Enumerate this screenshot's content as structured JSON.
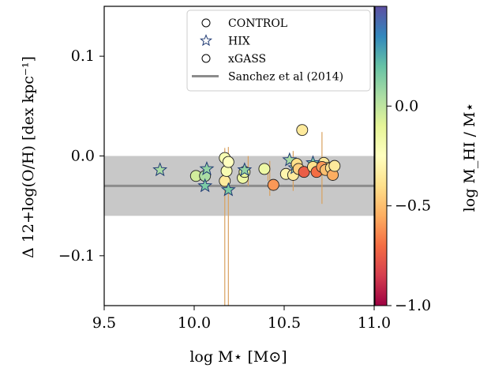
{
  "chart_data": {
    "type": "scatter",
    "xlabel": "log M⋆ [M⊙]",
    "ylabel": "Δ 12+log(O/H) [dex kpc⁻¹]",
    "xlim": [
      9.5,
      11.0
    ],
    "ylim": [
      -0.15,
      0.15
    ],
    "xticks": [
      9.5,
      10.0,
      10.5,
      11.0
    ],
    "xtick_labels": [
      "9.5",
      "10.0",
      "10.5",
      "11.0"
    ],
    "yticks": [
      -0.1,
      0.0,
      0.1
    ],
    "ytick_labels": [
      "−0.1",
      "0.0",
      "0.1"
    ],
    "colorbar": {
      "label": "log M_HI / M⋆",
      "range": [
        -1.0,
        0.5
      ],
      "ticks": [
        -1.0,
        -0.5,
        0.0
      ],
      "tick_labels": [
        "−1.0",
        "−0.5",
        "0.0"
      ]
    },
    "legend": {
      "placement": "top-right",
      "entries": [
        {
          "label": "CONTROL",
          "marker": "circle"
        },
        {
          "label": "HIX",
          "marker": "star"
        },
        {
          "label": "xGASS",
          "marker": "circle"
        },
        {
          "label": "Sanchez et al (2014)",
          "marker": "line"
        }
      ]
    },
    "reference": {
      "y": -0.03,
      "band": [
        -0.06,
        0.0
      ],
      "line_color": "#8c8c8c",
      "band_color": "#c8c8c8"
    },
    "series": [
      {
        "name": "CONTROL",
        "marker": "circle",
        "points": [
          {
            "x": 10.01,
            "y": -0.02,
            "c": -0.05
          },
          {
            "x": 10.06,
            "y": -0.02,
            "c": 0.05
          },
          {
            "x": 10.17,
            "y": -0.025,
            "c": -0.35
          },
          {
            "x": 10.18,
            "y": -0.015,
            "c": -0.2
          },
          {
            "x": 10.27,
            "y": -0.022,
            "c": -0.15
          },
          {
            "x": 10.28,
            "y": -0.016,
            "c": -0.1
          },
          {
            "x": 10.39,
            "y": -0.013,
            "c": -0.15
          },
          {
            "x": 10.51,
            "y": -0.018,
            "c": -0.3
          },
          {
            "x": 10.55,
            "y": -0.019,
            "c": -0.35
          },
          {
            "x": 10.72,
            "y": -0.007,
            "c": -0.35
          },
          {
            "x": 10.74,
            "y": -0.012,
            "c": -0.3
          }
        ]
      },
      {
        "name": "HIX",
        "marker": "star",
        "points": [
          {
            "x": 9.81,
            "y": -0.014,
            "c": 0.05
          },
          {
            "x": 10.06,
            "y": -0.03,
            "c": 0.15
          },
          {
            "x": 10.07,
            "y": -0.013,
            "c": 0.1
          },
          {
            "x": 10.19,
            "y": -0.034,
            "c": 0.15
          },
          {
            "x": 10.28,
            "y": -0.014,
            "c": 0.1
          },
          {
            "x": 10.53,
            "y": -0.004,
            "c": 0.05
          },
          {
            "x": 10.56,
            "y": -0.012,
            "c": 0.05
          },
          {
            "x": 10.66,
            "y": -0.007,
            "c": 0.15
          }
        ]
      },
      {
        "name": "xGASS",
        "marker": "circle",
        "points": [
          {
            "x": 10.17,
            "y": -0.002,
            "c": -0.2,
            "yerr": [
              0.01,
              0.16
            ]
          },
          {
            "x": 10.19,
            "y": -0.006,
            "c": -0.25,
            "yerr": [
              0.015,
              0.15
            ]
          },
          {
            "x": 10.44,
            "y": -0.029,
            "c": -0.6
          },
          {
            "x": 10.57,
            "y": -0.008,
            "c": -0.4
          },
          {
            "x": 10.58,
            "y": -0.013,
            "c": -0.45
          },
          {
            "x": 10.6,
            "y": 0.026,
            "c": -0.35
          },
          {
            "x": 10.61,
            "y": -0.016,
            "c": -0.75
          },
          {
            "x": 10.66,
            "y": -0.011,
            "c": -0.4
          },
          {
            "x": 10.68,
            "y": -0.016,
            "c": -0.7
          },
          {
            "x": 10.71,
            "y": -0.011,
            "c": -0.6,
            "yerr": [
              0.035,
              0.037
            ]
          },
          {
            "x": 10.73,
            "y": -0.014,
            "c": -0.5
          },
          {
            "x": 10.76,
            "y": -0.012,
            "c": -0.4
          },
          {
            "x": 10.77,
            "y": -0.019,
            "c": -0.55
          },
          {
            "x": 10.78,
            "y": -0.01,
            "c": -0.35
          }
        ]
      }
    ],
    "extra_errorbars": [
      {
        "x": 10.3,
        "y0": -0.03,
        "y1": 0.0
      },
      {
        "x": 10.42,
        "y0": -0.04,
        "y1": -0.005
      },
      {
        "x": 10.41,
        "y0": -0.025,
        "y1": -0.01
      },
      {
        "x": 10.55,
        "y0": -0.035,
        "y1": 0.005
      }
    ]
  }
}
